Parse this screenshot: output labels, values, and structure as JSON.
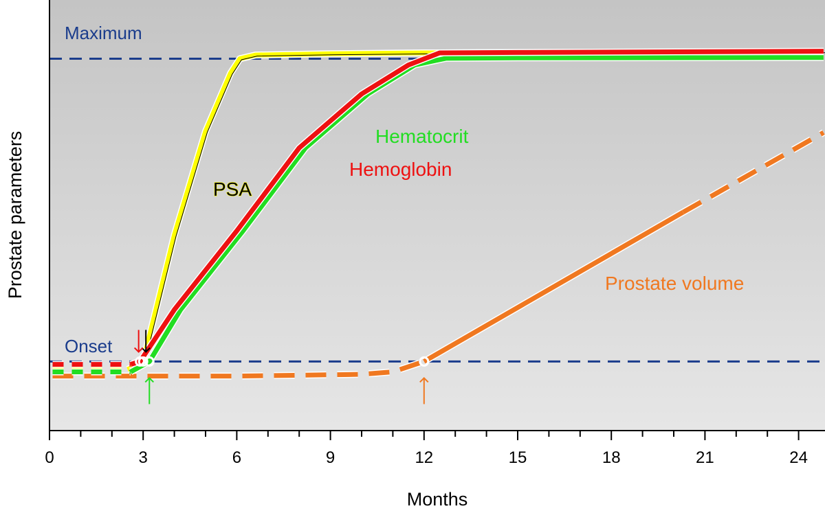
{
  "chart_data": {
    "type": "line",
    "xlabel": "Months",
    "ylabel": "Prostate parameters",
    "xlim": [
      0,
      24.8
    ],
    "ylim": [
      0,
      100
    ],
    "xticks": [
      0,
      3,
      6,
      9,
      12,
      15,
      18,
      21,
      24
    ],
    "xticks_minor_step": 1,
    "grid": false,
    "background_gradient": [
      "#c4c4c4",
      "#e6e6e6"
    ],
    "reference_lines": [
      {
        "name": "Maximum",
        "label": "Maximum",
        "y": 87.5,
        "color": "#1a3c8c",
        "style": "dashed"
      },
      {
        "name": "Onset",
        "label": "Onset",
        "y": 14.5,
        "color": "#1a3c8c",
        "style": "dashed"
      }
    ],
    "series": [
      {
        "name": "PSA",
        "label": "PSA",
        "color": "#ffff00",
        "label_color": "#000000",
        "label_outline": "#ffff00",
        "onset_month": 3,
        "onset_arrow_color": "#000000",
        "segments": [
          {
            "style": "dashed",
            "points": [
              [
                0.1,
                12.5
              ],
              [
                2.5,
                12.6
              ]
            ]
          },
          {
            "style": "solid",
            "points": [
              [
                2.5,
                12.6
              ],
              [
                2.8,
                13.5
              ],
              [
                3.0,
                14.5
              ],
              [
                4.0,
                45
              ],
              [
                5.0,
                70
              ],
              [
                5.8,
                84
              ],
              [
                6.1,
                87.5
              ],
              [
                6.6,
                88.4
              ],
              [
                9,
                88.7
              ],
              [
                12,
                88.9
              ],
              [
                24.8,
                89.2
              ]
            ]
          }
        ]
      },
      {
        "name": "Hemoglobin",
        "label": "Hemoglobin",
        "color": "#ee1111",
        "label_color": "#ee1111",
        "onset_month": 2.9,
        "onset_arrow_color": "#ee1111",
        "segments": [
          {
            "style": "dashed",
            "points": [
              [
                0.1,
                13.8
              ],
              [
                2.6,
                13.8
              ]
            ]
          },
          {
            "style": "solid",
            "points": [
              [
                2.6,
                13.8
              ],
              [
                2.9,
                14.5
              ],
              [
                4,
                27
              ],
              [
                6,
                46
              ],
              [
                8,
                66
              ],
              [
                10,
                79
              ],
              [
                11.5,
                86
              ],
              [
                12.5,
                88.9
              ],
              [
                15,
                89.0
              ],
              [
                24.8,
                89.3
              ]
            ]
          }
        ]
      },
      {
        "name": "Hematocrit",
        "label": "Hematocrit",
        "color": "#22dd22",
        "label_color": "#22dd22",
        "onset_month": 3.2,
        "onset_arrow_color": "#22dd22",
        "segments": [
          {
            "style": "dashed",
            "points": [
              [
                0.1,
                12.0
              ],
              [
                2.6,
                12.0
              ]
            ]
          },
          {
            "style": "solid",
            "points": [
              [
                2.6,
                12.0
              ],
              [
                3.2,
                14.5
              ],
              [
                4.2,
                27
              ],
              [
                6.2,
                46
              ],
              [
                8.2,
                66
              ],
              [
                10.2,
                79
              ],
              [
                11.7,
                86
              ],
              [
                12.7,
                87.6
              ],
              [
                15,
                87.7
              ],
              [
                24.8,
                87.8
              ]
            ]
          }
        ]
      },
      {
        "name": "Prostate volume",
        "label": "Prostate volume",
        "color": "#f07820",
        "label_color": "#f07820",
        "onset_month": 12,
        "onset_arrow_color": "#f07820",
        "segments": [
          {
            "style": "dashed",
            "points": [
              [
                0.1,
                11.0
              ],
              [
                6,
                11.0
              ],
              [
                10,
                11.4
              ],
              [
                11.0,
                12.0
              ],
              [
                12,
                14.5
              ]
            ]
          },
          {
            "style": "solid",
            "points": [
              [
                12,
                14.5
              ],
              [
                20.3,
                50.5
              ]
            ]
          },
          {
            "style": "dashed",
            "points": [
              [
                20.3,
                50.5
              ],
              [
                24.8,
                69.7
              ]
            ]
          }
        ]
      }
    ]
  }
}
